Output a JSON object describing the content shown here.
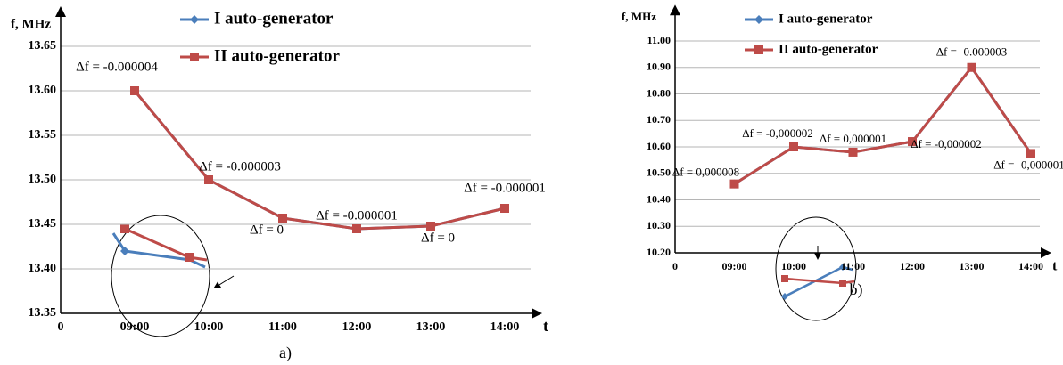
{
  "chart_data": [
    {
      "type": "line",
      "caption": "a)",
      "y_label": "f, MHz",
      "x_label": "t",
      "origin_label": "0",
      "categories": [
        "09:00",
        "10:00",
        "11:00",
        "12:00",
        "13:00",
        "14:00"
      ],
      "series": [
        {
          "name": "I auto-generator",
          "color": "#4a7ebb",
          "values": [
            13.6,
            13.5,
            13.457,
            13.445,
            13.448,
            13.468
          ]
        },
        {
          "name": "II auto-generator",
          "color": "#be4b48",
          "values": [
            13.6,
            13.5,
            13.457,
            13.445,
            13.448,
            13.468
          ]
        }
      ],
      "annotations": [
        "Δf = -0.000004",
        "Δf = -0.000003",
        "Δf = 0",
        "Δf = -0.000001",
        "Δf = 0",
        "Δf = -0.000001"
      ],
      "ylim": [
        13.35,
        13.69
      ],
      "yticks": [
        13.35,
        {
          "value": 13.4,
          "label": "13.40"
        },
        13.45,
        {
          "value": 13.5,
          "label": "13.50"
        },
        13.55,
        {
          "value": 13.6,
          "label": "13.60"
        },
        13.65
      ],
      "grid": true
    },
    {
      "type": "line",
      "caption": "b)",
      "y_label": "f, MHz",
      "x_label": "t",
      "origin_label": "0",
      "categories": [
        "09:00",
        "10:00",
        "11:00",
        "12:00",
        "13:00",
        "14:00"
      ],
      "series": [
        {
          "name": "I auto-generator",
          "color": "#4a7ebb",
          "values": [
            10.46,
            10.6,
            10.58,
            10.62,
            10.9,
            10.575
          ]
        },
        {
          "name": "II auto-generator",
          "color": "#be4b48",
          "values": [
            10.46,
            10.6,
            10.58,
            10.62,
            10.9,
            10.575
          ]
        }
      ],
      "annotations": [
        "Δf = 0,000008",
        "Δf = -0,000002",
        "Δf = 0,000001",
        "Δf = -0,000002",
        "Δf = -0.000003",
        "Δf = -0,000001"
      ],
      "ylim": [
        10.2,
        11.12
      ],
      "yticks": [
        {
          "value": 10.2,
          "label": "10.20"
        },
        {
          "value": 10.3,
          "label": "10.30"
        },
        {
          "value": 10.4,
          "label": "10.40"
        },
        {
          "value": 10.5,
          "label": "10.50"
        },
        {
          "value": 10.6,
          "label": "10.60"
        },
        {
          "value": 10.7,
          "label": "10.70"
        },
        {
          "value": 10.8,
          "label": "10.80"
        },
        {
          "value": 10.9,
          "label": "10.90"
        },
        {
          "value": 11.0,
          "label": "11.00"
        }
      ],
      "grid": true
    }
  ]
}
